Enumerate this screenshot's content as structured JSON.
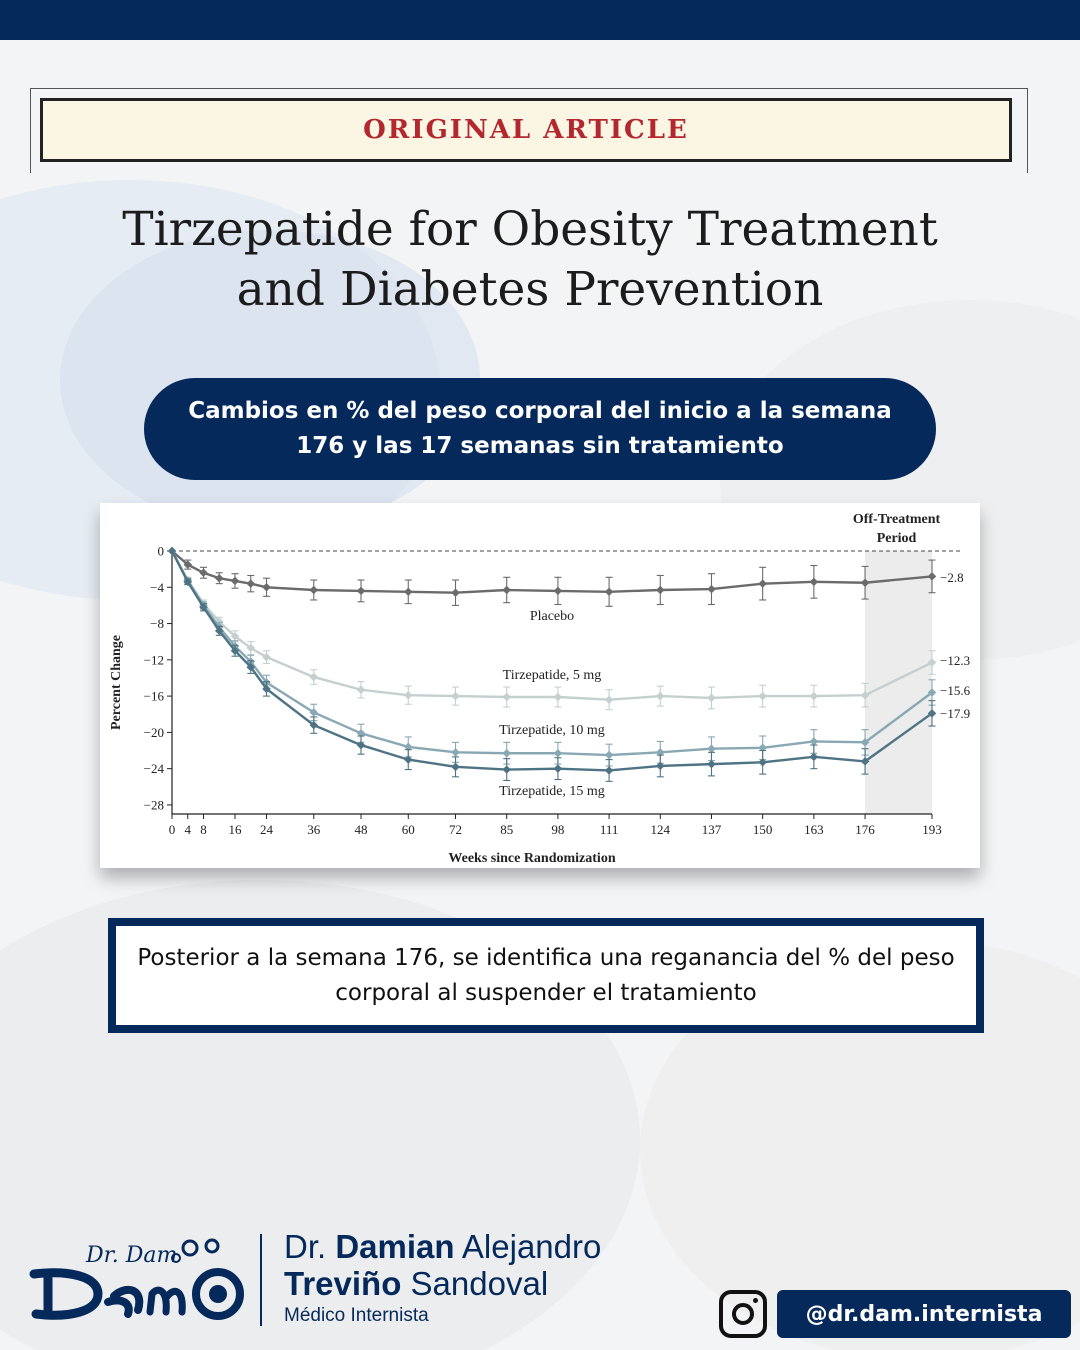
{
  "header": {
    "article_label": "ORIGINAL ARTICLE"
  },
  "title": {
    "line1": "Tirzepatide for Obesity Treatment",
    "line2": "and Diabetes Prevention"
  },
  "subtitle_pill": {
    "text": "Cambios en % del peso corporal del inicio a la semana 176 y las 17 semanas sin tratamiento"
  },
  "note": {
    "text": "Posterior a la semana 176, se identifica una reganancia del % del peso corporal al suspender el tratamiento"
  },
  "footer": {
    "logo_text": "Dr. Dam",
    "name_prefix": "Dr.",
    "name_first_bold": "Damian",
    "name_first_rest": "Alejandro",
    "name_last_bold": "Treviño",
    "name_last_rest": "Sandoval",
    "specialty": "Médico Internista",
    "instagram_icon": "instagram-icon",
    "handle": "@dr.dam.internista"
  },
  "colors": {
    "navy": "#06295b",
    "article_red": "#b3272e",
    "placebo": "#6b6b6b",
    "tirz5": "#c4d0cf",
    "tirz10": "#88a8b3",
    "tirz15": "#4e7384",
    "off_treatment_shade": "#ececec"
  },
  "chart_data": {
    "type": "line",
    "xlabel": "Weeks since Randomization",
    "ylabel": "Percent Change",
    "x": [
      0,
      4,
      8,
      12,
      16,
      20,
      24,
      36,
      48,
      60,
      72,
      85,
      98,
      111,
      124,
      137,
      150,
      163,
      176,
      193
    ],
    "x_ticks": [
      0,
      4,
      8,
      16,
      24,
      36,
      48,
      60,
      72,
      85,
      98,
      111,
      124,
      137,
      150,
      163,
      176,
      193
    ],
    "y_ticks": [
      0,
      -4,
      -8,
      -12,
      -16,
      -20,
      -24,
      -28
    ],
    "xlim": [
      0,
      193
    ],
    "ylim": [
      -29,
      0
    ],
    "baseline": 0,
    "shaded_region": {
      "label_line1": "Off-Treatment",
      "label_line2": "Period",
      "x_start": 176,
      "x_end": 193
    },
    "series": [
      {
        "name": "Placebo",
        "color": "#6b6b6b",
        "end_label": "−2.8",
        "values": [
          0,
          -1.5,
          -2.4,
          -3.0,
          -3.3,
          -3.6,
          -4.0,
          -4.3,
          -4.4,
          -4.5,
          -4.6,
          -4.3,
          -4.4,
          -4.5,
          -4.3,
          -4.2,
          -3.6,
          -3.4,
          -3.5,
          -2.8
        ],
        "error": [
          0,
          0.5,
          0.6,
          0.6,
          0.8,
          0.9,
          1.0,
          1.1,
          1.2,
          1.3,
          1.4,
          1.4,
          1.5,
          1.6,
          1.6,
          1.7,
          1.8,
          1.8,
          1.8,
          1.8
        ]
      },
      {
        "name": "Tirzepatide, 5 mg",
        "color": "#c4d0cf",
        "end_label": "−12.3",
        "values": [
          0,
          -3.2,
          -5.8,
          -7.8,
          -9.4,
          -10.7,
          -11.7,
          -13.9,
          -15.3,
          -15.9,
          -16.0,
          -16.1,
          -16.1,
          -16.4,
          -16.0,
          -16.2,
          -16.0,
          -16.0,
          -15.9,
          -12.3
        ],
        "error": [
          0,
          0.3,
          0.4,
          0.5,
          0.6,
          0.7,
          0.7,
          0.8,
          0.9,
          1.0,
          1.0,
          1.1,
          1.1,
          1.1,
          1.1,
          1.2,
          1.2,
          1.2,
          1.3,
          1.3
        ]
      },
      {
        "name": "Tirzepatide, 10 mg",
        "color": "#88a8b3",
        "end_label": "−15.6",
        "values": [
          0,
          -3.3,
          -6.0,
          -8.4,
          -10.5,
          -12.2,
          -14.5,
          -17.8,
          -20.1,
          -21.6,
          -22.2,
          -22.3,
          -22.3,
          -22.5,
          -22.2,
          -21.8,
          -21.7,
          -21.0,
          -21.1,
          -15.6
        ],
        "error": [
          0,
          0.3,
          0.4,
          0.5,
          0.6,
          0.7,
          0.8,
          0.9,
          1.0,
          1.1,
          1.1,
          1.2,
          1.2,
          1.2,
          1.2,
          1.3,
          1.3,
          1.3,
          1.4,
          1.4
        ]
      },
      {
        "name": "Tirzepatide, 15 mg",
        "color": "#4e7384",
        "end_label": "−17.9",
        "values": [
          0,
          -3.4,
          -6.2,
          -8.8,
          -11.0,
          -12.8,
          -15.2,
          -19.2,
          -21.4,
          -23.0,
          -23.8,
          -24.1,
          -24.0,
          -24.2,
          -23.7,
          -23.5,
          -23.3,
          -22.7,
          -23.2,
          -17.9
        ],
        "error": [
          0,
          0.3,
          0.4,
          0.5,
          0.6,
          0.7,
          0.8,
          0.9,
          1.0,
          1.1,
          1.1,
          1.2,
          1.2,
          1.2,
          1.2,
          1.3,
          1.3,
          1.3,
          1.4,
          1.4
        ]
      }
    ]
  }
}
